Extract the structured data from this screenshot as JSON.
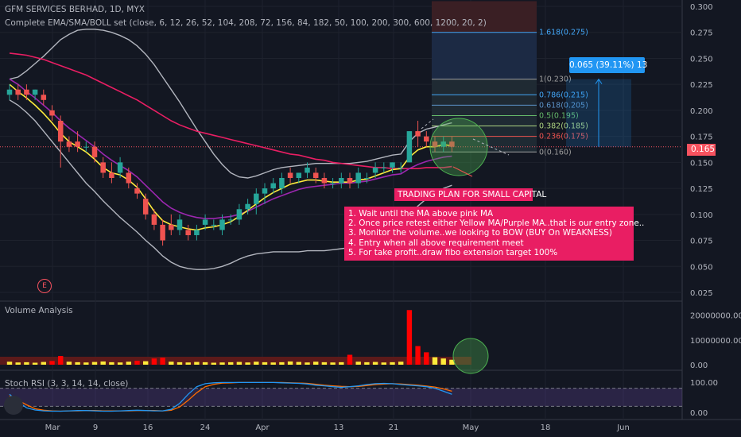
{
  "header": {
    "symbol_line": "GFM SERVICES BERHAD, 1D, MYX",
    "indicator_line": "Complete EMA/SMA/BOLL set (close, 6, 12, 26, 52, 104, 208, 72, 156, 84, 182, 50, 100, 200, 300, 600, 1200, 20, 2)"
  },
  "annotations": {
    "plan_title": "TRADING PLAN FOR SMALL CAPITAL",
    "plan_steps": [
      "1. Wait until the MA above pink MA",
      "2. Once price retest either Yellow MA/Purple MA..that is our entry zone..",
      "3. Monitor the volume..we looking to BOW (BUY On WEAKNESS)",
      "4. Entry when all above requirement meet",
      "5. For take profit..draw fibo extension target 100%"
    ],
    "measure_label": "0.065 (39.11%) 13",
    "earnings_marker": "E"
  },
  "colors": {
    "background": "#131722",
    "up_candle": "#26a69a",
    "down_candle": "#ef5350",
    "annotation": "#e91e63",
    "measure": "#2196f3",
    "price_tag": "#f7525f"
  },
  "chart_data": [
    {
      "type": "candlestick",
      "title": "GFM SERVICES BERHAD, 1D, MYX",
      "x_ticks": [
        "Mar",
        "9",
        "16",
        "24",
        "Apr",
        "13",
        "21",
        "May",
        "18",
        "Jun"
      ],
      "y_ticks": [
        "0.300",
        "0.275",
        "0.250",
        "0.225",
        "0.200",
        "0.175",
        "0.150",
        "0.125",
        "0.100",
        "0.075",
        "0.050",
        "0.025"
      ],
      "ylim": [
        0.02,
        0.305
      ],
      "last_price": "0.165",
      "candles": [
        [
          0.215,
          0.225,
          0.21,
          0.22
        ],
        [
          0.22,
          0.225,
          0.21,
          0.215
        ],
        [
          0.22,
          0.225,
          0.21,
          0.215
        ],
        [
          0.215,
          0.22,
          0.21,
          0.22
        ],
        [
          0.215,
          0.22,
          0.205,
          0.21
        ],
        [
          0.2,
          0.205,
          0.19,
          0.195
        ],
        [
          0.19,
          0.195,
          0.145,
          0.17
        ],
        [
          0.17,
          0.175,
          0.16,
          0.165
        ],
        [
          0.17,
          0.18,
          0.16,
          0.165
        ],
        [
          0.165,
          0.17,
          0.16,
          0.165
        ],
        [
          0.165,
          0.17,
          0.15,
          0.155
        ],
        [
          0.15,
          0.155,
          0.135,
          0.14
        ],
        [
          0.14,
          0.15,
          0.13,
          0.135
        ],
        [
          0.14,
          0.155,
          0.135,
          0.15
        ],
        [
          0.14,
          0.145,
          0.125,
          0.13
        ],
        [
          0.125,
          0.13,
          0.115,
          0.12
        ],
        [
          0.115,
          0.12,
          0.095,
          0.1
        ],
        [
          0.1,
          0.105,
          0.085,
          0.09
        ],
        [
          0.09,
          0.095,
          0.07,
          0.075
        ],
        [
          0.09,
          0.1,
          0.08,
          0.085
        ],
        [
          0.085,
          0.1,
          0.08,
          0.095
        ],
        [
          0.085,
          0.09,
          0.075,
          0.08
        ],
        [
          0.08,
          0.09,
          0.075,
          0.085
        ],
        [
          0.09,
          0.1,
          0.085,
          0.095
        ],
        [
          0.09,
          0.095,
          0.085,
          0.09
        ],
        [
          0.085,
          0.1,
          0.08,
          0.095
        ],
        [
          0.095,
          0.1,
          0.09,
          0.095
        ],
        [
          0.095,
          0.11,
          0.09,
          0.105
        ],
        [
          0.105,
          0.115,
          0.1,
          0.11
        ],
        [
          0.11,
          0.125,
          0.1,
          0.12
        ],
        [
          0.12,
          0.13,
          0.11,
          0.125
        ],
        [
          0.125,
          0.135,
          0.12,
          0.13
        ],
        [
          0.125,
          0.14,
          0.12,
          0.135
        ],
        [
          0.14,
          0.145,
          0.13,
          0.135
        ],
        [
          0.135,
          0.14,
          0.13,
          0.14
        ],
        [
          0.14,
          0.15,
          0.135,
          0.145
        ],
        [
          0.14,
          0.145,
          0.13,
          0.135
        ],
        [
          0.135,
          0.14,
          0.125,
          0.13
        ],
        [
          0.13,
          0.135,
          0.125,
          0.13
        ],
        [
          0.13,
          0.14,
          0.125,
          0.135
        ],
        [
          0.135,
          0.14,
          0.125,
          0.13
        ],
        [
          0.13,
          0.145,
          0.125,
          0.14
        ],
        [
          0.135,
          0.14,
          0.13,
          0.135
        ],
        [
          0.14,
          0.15,
          0.135,
          0.145
        ],
        [
          0.145,
          0.15,
          0.14,
          0.145
        ],
        [
          0.145,
          0.15,
          0.14,
          0.15
        ],
        [
          0.145,
          0.15,
          0.14,
          0.145
        ],
        [
          0.15,
          0.18,
          0.15,
          0.18
        ],
        [
          0.18,
          0.19,
          0.165,
          0.175
        ],
        [
          0.175,
          0.18,
          0.165,
          0.17
        ],
        [
          0.17,
          0.175,
          0.16,
          0.165
        ],
        [
          0.165,
          0.175,
          0.16,
          0.17
        ],
        [
          0.17,
          0.175,
          0.16,
          0.165
        ]
      ],
      "ma_yellow": [
        0.225,
        0.218,
        0.212,
        0.205,
        0.197,
        0.188,
        0.178,
        0.17,
        0.165,
        0.16,
        0.153,
        0.145,
        0.14,
        0.138,
        0.133,
        0.126,
        0.115,
        0.103,
        0.094,
        0.09,
        0.088,
        0.086,
        0.085,
        0.087,
        0.088,
        0.09,
        0.093,
        0.098,
        0.104,
        0.11,
        0.116,
        0.121,
        0.125,
        0.129,
        0.131,
        0.133,
        0.133,
        0.132,
        0.131,
        0.131,
        0.131,
        0.133,
        0.134,
        0.137,
        0.14,
        0.143,
        0.144,
        0.155,
        0.162,
        0.165,
        0.165,
        0.167,
        0.166
      ],
      "ma_purple": [
        0.23,
        0.225,
        0.218,
        0.212,
        0.205,
        0.198,
        0.19,
        0.183,
        0.177,
        0.171,
        0.165,
        0.158,
        0.152,
        0.147,
        0.142,
        0.136,
        0.128,
        0.12,
        0.112,
        0.106,
        0.102,
        0.099,
        0.097,
        0.096,
        0.096,
        0.097,
        0.098,
        0.1,
        0.103,
        0.107,
        0.111,
        0.115,
        0.118,
        0.121,
        0.124,
        0.126,
        0.127,
        0.128,
        0.129,
        0.13,
        0.13,
        0.131,
        0.132,
        0.134,
        0.136,
        0.138,
        0.139,
        0.144,
        0.148,
        0.151,
        0.153,
        0.155,
        0.156
      ],
      "ma_pink": [
        0.255,
        0.254,
        0.253,
        0.251,
        0.249,
        0.246,
        0.243,
        0.24,
        0.237,
        0.234,
        0.23,
        0.226,
        0.222,
        0.218,
        0.214,
        0.21,
        0.205,
        0.2,
        0.195,
        0.19,
        0.186,
        0.183,
        0.18,
        0.178,
        0.176,
        0.174,
        0.172,
        0.17,
        0.168,
        0.166,
        0.164,
        0.162,
        0.16,
        0.158,
        0.157,
        0.155,
        0.153,
        0.152,
        0.15,
        0.149,
        0.148,
        0.147,
        0.146,
        0.145,
        0.145,
        0.144,
        0.144,
        0.144,
        0.144,
        0.145,
        0.145,
        0.145,
        0.146
      ],
      "bb_upper": [
        0.23,
        0.232,
        0.238,
        0.245,
        0.252,
        0.26,
        0.268,
        0.273,
        0.277,
        0.278,
        0.278,
        0.277,
        0.275,
        0.272,
        0.268,
        0.262,
        0.254,
        0.244,
        0.232,
        0.22,
        0.208,
        0.195,
        0.182,
        0.17,
        0.158,
        0.148,
        0.14,
        0.136,
        0.135,
        0.137,
        0.14,
        0.143,
        0.145,
        0.146,
        0.147,
        0.148,
        0.149,
        0.149,
        0.149,
        0.149,
        0.149,
        0.15,
        0.151,
        0.153,
        0.155,
        0.157,
        0.158,
        0.17,
        0.178,
        0.182,
        0.184,
        0.186,
        0.188
      ],
      "bb_lower": [
        0.21,
        0.205,
        0.198,
        0.19,
        0.18,
        0.17,
        0.16,
        0.15,
        0.14,
        0.13,
        0.122,
        0.113,
        0.105,
        0.097,
        0.09,
        0.083,
        0.075,
        0.068,
        0.06,
        0.054,
        0.05,
        0.048,
        0.047,
        0.047,
        0.048,
        0.05,
        0.053,
        0.057,
        0.06,
        0.062,
        0.063,
        0.064,
        0.064,
        0.064,
        0.064,
        0.065,
        0.065,
        0.065,
        0.066,
        0.067,
        0.068,
        0.069,
        0.07,
        0.073,
        0.078,
        0.085,
        0.092,
        0.1,
        0.108,
        0.115,
        0.12,
        0.125,
        0.128
      ],
      "fibonacci": [
        {
          "label": "1.618(0.275)",
          "value": 0.275
        },
        {
          "label": "1(0.230)",
          "value": 0.23
        },
        {
          "label": "0.786(0.215)",
          "value": 0.215
        },
        {
          "label": "0.618(0.205)",
          "value": 0.205
        },
        {
          "label": "0.5(0.195)",
          "value": 0.195
        },
        {
          "label": "0.382(0.185)",
          "value": 0.185
        },
        {
          "label": "0.236(0.175)",
          "value": 0.175
        },
        {
          "label": "0(0.160)",
          "value": 0.16
        }
      ]
    },
    {
      "type": "bar",
      "title": "Volume Analysis",
      "y_ticks": [
        "20000000.00",
        "10000000.00",
        "0.00"
      ],
      "ylim": [
        0,
        24000000
      ],
      "values": [
        1200000,
        900000,
        1000000,
        800000,
        1100000,
        1500000,
        3500000,
        1200000,
        1000000,
        900000,
        1100000,
        1300000,
        1000000,
        900000,
        1200000,
        1600000,
        1400000,
        2500000,
        2800000,
        1200000,
        1000000,
        900000,
        1100000,
        1000000,
        800000,
        900000,
        1000000,
        1100000,
        900000,
        1200000,
        1000000,
        900000,
        1000000,
        1300000,
        1100000,
        900000,
        1200000,
        1000000,
        900000,
        1000000,
        4000000,
        1200000,
        1000000,
        1100000,
        900000,
        1000000,
        1200000,
        22000000,
        7500000,
        5000000,
        3000000,
        2500000,
        2000000
      ],
      "colors": [
        "yellow",
        "yellow",
        "yellow",
        "yellow",
        "yellow",
        "red",
        "red",
        "yellow",
        "yellow",
        "yellow",
        "yellow",
        "yellow",
        "yellow",
        "yellow",
        "yellow",
        "red",
        "yellow",
        "red",
        "red",
        "yellow",
        "yellow",
        "yellow",
        "yellow",
        "yellow",
        "yellow",
        "yellow",
        "yellow",
        "yellow",
        "yellow",
        "yellow",
        "yellow",
        "yellow",
        "yellow",
        "yellow",
        "yellow",
        "yellow",
        "yellow",
        "yellow",
        "yellow",
        "yellow",
        "red",
        "yellow",
        "yellow",
        "yellow",
        "yellow",
        "yellow",
        "yellow",
        "red",
        "red",
        "red",
        "yellow",
        "yellow",
        "yellow"
      ]
    },
    {
      "type": "line",
      "title": "Stoch RSI (3, 3, 14, 14, close)",
      "y_ticks": [
        "100.00",
        "0.00"
      ],
      "ylim": [
        0,
        100
      ],
      "k": [
        60,
        35,
        15,
        8,
        5,
        4,
        4,
        5,
        6,
        6,
        5,
        4,
        4,
        5,
        6,
        7,
        6,
        5,
        5,
        10,
        30,
        60,
        85,
        95,
        98,
        99,
        99,
        99,
        99,
        99,
        99,
        99,
        98,
        97,
        96,
        94,
        90,
        88,
        85,
        83,
        85,
        88,
        92,
        95,
        96,
        95,
        92,
        90,
        88,
        85,
        80,
        70,
        60
      ],
      "d": [
        55,
        40,
        25,
        12,
        7,
        5,
        4,
        5,
        5,
        6,
        6,
        5,
        5,
        5,
        5,
        6,
        6,
        6,
        5,
        7,
        18,
        40,
        65,
        85,
        93,
        97,
        98,
        99,
        99,
        99,
        99,
        99,
        99,
        98,
        97,
        96,
        93,
        90,
        88,
        86,
        85,
        86,
        89,
        92,
        94,
        95,
        94,
        92,
        90,
        87,
        84,
        78,
        70
      ]
    }
  ]
}
